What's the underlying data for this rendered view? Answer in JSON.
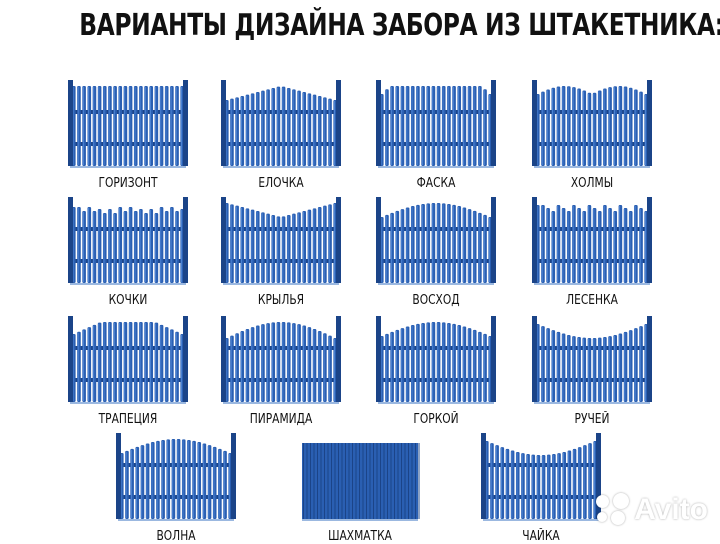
{
  "title": "ВАРИАНТЫ ДИЗАЙНА ЗАБОРА ИЗ ШТАКЕТНИКА:",
  "colors": {
    "fence": "#2a5fb2",
    "fence_dark": "#1b4488",
    "fence_light": "#4f86d6",
    "text": "#111111"
  },
  "fences": [
    {
      "label": "ГОРИЗОНТ",
      "shape": "flat"
    },
    {
      "label": "ЕЛОЧКА",
      "shape": "elochka"
    },
    {
      "label": "ФАСКА",
      "shape": "faska"
    },
    {
      "label": "ХОЛМЫ",
      "shape": "hills"
    },
    {
      "label": "КОЧКИ",
      "shape": "kochki"
    },
    {
      "label": "КРЫЛЬЯ",
      "shape": "wings"
    },
    {
      "label": "ВОСХОД",
      "shape": "sunrise"
    },
    {
      "label": "ЛЕСЕНКА",
      "shape": "ladder"
    },
    {
      "label": "ТРАПЕЦИЯ",
      "shape": "trapezoid"
    },
    {
      "label": "ПИРАМИДА",
      "shape": "pyramid"
    },
    {
      "label": "ГОРКОЙ",
      "shape": "gorka"
    },
    {
      "label": "РУЧЕЙ",
      "shape": "stream"
    },
    {
      "label": "ВОЛНА",
      "shape": "wave"
    },
    {
      "label": "ШАХМАТКА",
      "shape": "checker"
    },
    {
      "label": "ЧАЙКА",
      "shape": "gull"
    }
  ],
  "watermark": {
    "text": "Avito",
    "icon": "avito-dots-icon"
  }
}
